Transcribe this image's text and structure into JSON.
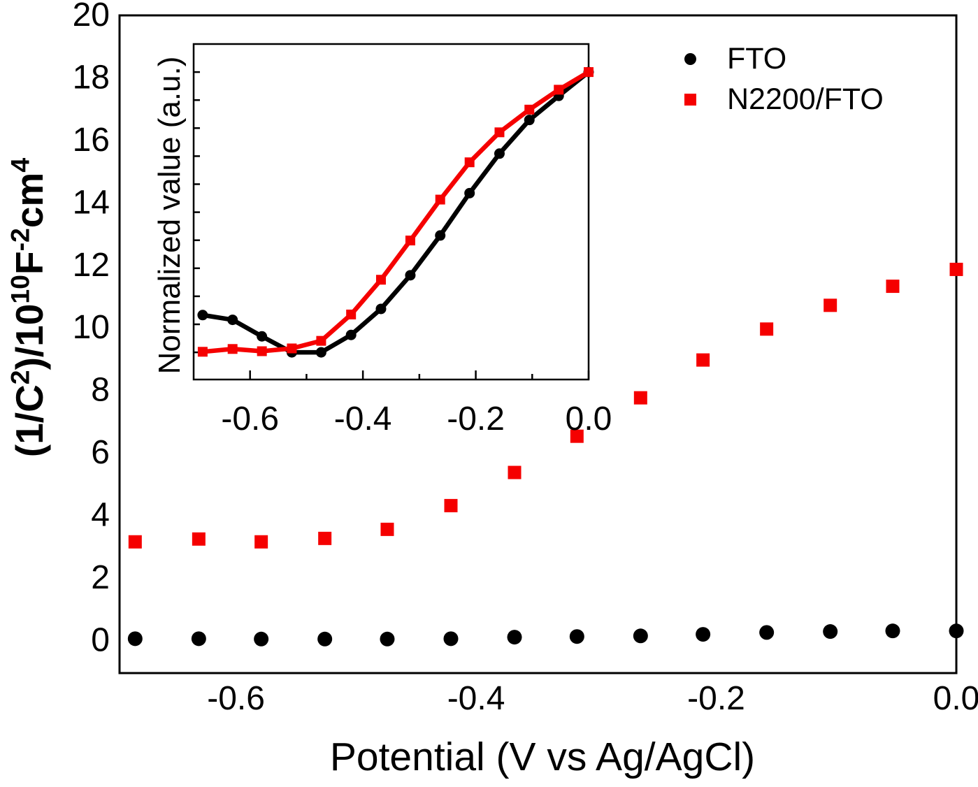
{
  "figure": {
    "background": "#ffffff",
    "colors": {
      "black": "#000000",
      "red": "#f50000"
    }
  },
  "legend": {
    "items": [
      {
        "label": "FTO",
        "marker": "circle",
        "color": "#000000"
      },
      {
        "label": "N2200/FTO",
        "marker": "square",
        "color": "#f50000"
      }
    ]
  },
  "chart_data": [
    {
      "id": "main",
      "type": "scatter",
      "title": "",
      "xlabel": "Potential (V vs Ag/AgCl)",
      "ylabel": "(1/C2)/10^10 F^-2 cm^4",
      "ylabel_segments": [
        {
          "text": "(1/C"
        },
        {
          "text": "2",
          "sup": true
        },
        {
          "text": ")/10"
        },
        {
          "text": "10",
          "sup": true
        },
        {
          "text": "F"
        },
        {
          "text": "-2",
          "sup": true
        },
        {
          "text": "cm"
        },
        {
          "text": "4",
          "sup": true
        }
      ],
      "xlim": [
        -0.697,
        0.0
      ],
      "ylim": [
        -1.09,
        19.96
      ],
      "grid": false,
      "legend_position": "top-right",
      "xticks": {
        "values": [
          -0.6,
          -0.4,
          -0.2,
          0.0
        ],
        "labels": [
          "-0.6",
          "-0.4",
          "-0.2",
          "0.0"
        ]
      },
      "yticks": {
        "values": [
          0,
          2,
          4,
          6,
          8,
          10,
          12,
          14,
          16,
          18,
          20
        ],
        "labels": [
          "0",
          "2",
          "4",
          "6",
          "8",
          "10",
          "12",
          "14",
          "16",
          "18",
          "20"
        ]
      },
      "x": [
        -0.684,
        -0.631,
        -0.579,
        -0.526,
        -0.474,
        -0.421,
        -0.368,
        -0.316,
        -0.263,
        -0.211,
        -0.158,
        -0.105,
        -0.053,
        0.0
      ],
      "series": [
        {
          "name": "FTO",
          "marker": "circle",
          "color": "#000000",
          "line": false,
          "values": [
            0.01,
            0.01,
            0.0,
            0.0,
            0.0,
            0.01,
            0.06,
            0.08,
            0.1,
            0.15,
            0.21,
            0.24,
            0.26,
            0.26
          ]
        },
        {
          "name": "N2200/FTO",
          "marker": "square",
          "color": "#f50000",
          "line": false,
          "values": [
            3.11,
            3.2,
            3.11,
            3.22,
            3.51,
            4.27,
            5.33,
            6.49,
            7.72,
            8.93,
            9.92,
            10.68,
            11.29,
            11.83
          ]
        }
      ]
    },
    {
      "id": "inset",
      "type": "line",
      "title": "",
      "xlabel": "",
      "ylabel": "Normalized value (a.u.)",
      "xlim": [
        -0.7,
        0.0
      ],
      "ylim": [
        -0.097,
        1.1
      ],
      "grid": false,
      "xticks": {
        "values": [
          -0.6,
          -0.4,
          -0.2,
          0.0
        ],
        "labels": [
          "-0.6",
          "-0.4",
          "-0.2",
          "0.0"
        ],
        "minor": [
          -0.5,
          -0.3,
          -0.1
        ]
      },
      "yticks": {
        "values": [
          0,
          0.1,
          0.2,
          0.3,
          0.4,
          0.5,
          0.6,
          0.7,
          0.8,
          0.9,
          1.0
        ],
        "labels": []
      },
      "x": [
        -0.684,
        -0.631,
        -0.579,
        -0.526,
        -0.474,
        -0.421,
        -0.368,
        -0.316,
        -0.263,
        -0.211,
        -0.158,
        -0.105,
        -0.053,
        0.0
      ],
      "series": [
        {
          "name": "FTO",
          "marker": "circle",
          "color": "#000000",
          "line": true,
          "values": [
            0.133,
            0.116,
            0.057,
            0.0,
            0.0,
            0.062,
            0.155,
            0.275,
            0.417,
            0.568,
            0.709,
            0.829,
            0.915,
            1.0
          ]
        },
        {
          "name": "N2200/FTO",
          "marker": "square",
          "color": "#f50000",
          "line": true,
          "values": [
            0.002,
            0.012,
            0.004,
            0.014,
            0.041,
            0.135,
            0.259,
            0.399,
            0.545,
            0.678,
            0.785,
            0.866,
            0.937,
            1.0
          ]
        }
      ]
    }
  ]
}
